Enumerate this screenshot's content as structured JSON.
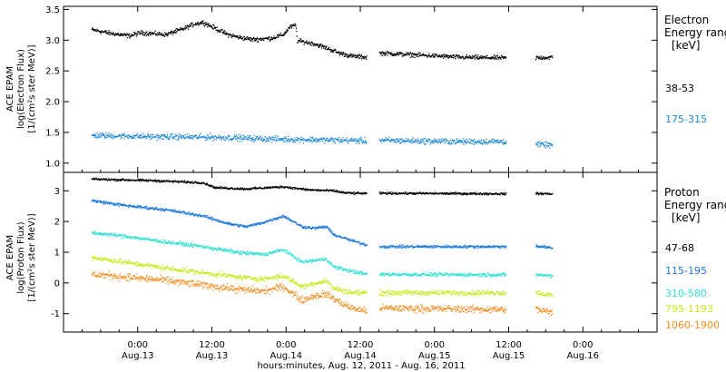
{
  "chart_data": [
    {
      "type": "scatter",
      "panel": "electron",
      "ylabel": [
        "ACE EPAM",
        "log(Electron Flux)",
        "[1/(cm²s ster MeV)]"
      ],
      "ylim": [
        0.85,
        3.55
      ],
      "yticks": [
        "3.5",
        "3.0",
        "2.5",
        "2.0",
        "1.5",
        "1.0"
      ],
      "legend": {
        "title": [
          "Electron",
          "Energy ranges",
          "[keV]"
        ],
        "entries": [
          "38-53",
          "175-315"
        ]
      },
      "series": [
        {
          "name": "38-53",
          "color": "#000000",
          "noise": 0.03,
          "points": [
            [
              0,
              3.18
            ],
            [
              6,
              3.12
            ],
            [
              12,
              3.08
            ],
            [
              16,
              3.13
            ],
            [
              24,
              3.1
            ],
            [
              30,
              3.2
            ],
            [
              33,
              3.27
            ],
            [
              36,
              3.3
            ],
            [
              40,
              3.2
            ],
            [
              44,
              3.1
            ],
            [
              48,
              3.05
            ],
            [
              52,
              3.02
            ],
            [
              58,
              3.04
            ],
            [
              62,
              3.1
            ],
            [
              64,
              3.22
            ],
            [
              66,
              3.25
            ],
            [
              66.5,
              3.0
            ],
            [
              72,
              2.95
            ],
            [
              76,
              2.88
            ],
            [
              80,
              2.8
            ],
            [
              84,
              2.75
            ],
            [
              89,
              2.73
            ],
            [
              93,
              2.8
            ],
            [
              120,
              2.73
            ],
            [
              134,
              2.72
            ],
            [
              142,
              2.72
            ],
            [
              149,
              2.73
            ]
          ]
        },
        {
          "name": "175-315",
          "color": "#1e88d8",
          "noise": 0.04,
          "points": [
            [
              0,
              1.46
            ],
            [
              20,
              1.44
            ],
            [
              40,
              1.43
            ],
            [
              60,
              1.4
            ],
            [
              84,
              1.38
            ],
            [
              89,
              1.37
            ],
            [
              93,
              1.38
            ],
            [
              120,
              1.36
            ],
            [
              134,
              1.36
            ],
            [
              142,
              1.32
            ],
            [
              149,
              1.3
            ]
          ]
        }
      ]
    },
    {
      "type": "scatter",
      "panel": "proton",
      "ylabel": [
        "ACE EPAM",
        "log(Proton Flux)",
        "[1/(cm²s ster MeV)]"
      ],
      "ylim": [
        -1.6,
        3.6
      ],
      "yticks": [
        "3",
        "2",
        "1",
        "0",
        "-1"
      ],
      "legend": {
        "title": [
          "Proton",
          "Energy ranges",
          "[keV]"
        ],
        "entries": [
          "47-68",
          "115-195",
          "310-580",
          "795-1193",
          "1060-1900"
        ]
      },
      "series": [
        {
          "name": "47-68",
          "color": "#000000",
          "noise": 0.03,
          "points": [
            [
              0,
              3.4
            ],
            [
              20,
              3.35
            ],
            [
              36,
              3.28
            ],
            [
              40,
              3.12
            ],
            [
              50,
              3.08
            ],
            [
              62,
              3.15
            ],
            [
              70,
              3.05
            ],
            [
              78,
              3.02
            ],
            [
              82,
              2.95
            ],
            [
              89,
              2.93
            ],
            [
              93,
              2.94
            ],
            [
              134,
              2.92
            ],
            [
              142,
              2.93
            ],
            [
              149,
              2.92
            ]
          ]
        },
        {
          "name": "115-195",
          "color": "#1e78dc",
          "noise": 0.04,
          "points": [
            [
              0,
              2.7
            ],
            [
              10,
              2.55
            ],
            [
              24,
              2.4
            ],
            [
              36,
              2.2
            ],
            [
              44,
              1.95
            ],
            [
              50,
              1.85
            ],
            [
              56,
              2.0
            ],
            [
              62,
              2.2
            ],
            [
              68,
              1.85
            ],
            [
              72,
              1.8
            ],
            [
              76,
              1.85
            ],
            [
              78,
              1.6
            ],
            [
              84,
              1.4
            ],
            [
              89,
              1.25
            ],
            [
              93,
              1.2
            ],
            [
              134,
              1.2
            ],
            [
              142,
              1.25
            ],
            [
              149,
              1.15
            ]
          ]
        },
        {
          "name": "310-580",
          "color": "#30e0d0",
          "noise": 0.05,
          "points": [
            [
              0,
              1.65
            ],
            [
              10,
              1.55
            ],
            [
              24,
              1.35
            ],
            [
              36,
              1.2
            ],
            [
              48,
              1.0
            ],
            [
              56,
              0.95
            ],
            [
              62,
              1.1
            ],
            [
              68,
              0.7
            ],
            [
              72,
              0.75
            ],
            [
              76,
              0.8
            ],
            [
              78,
              0.55
            ],
            [
              84,
              0.4
            ],
            [
              89,
              0.3
            ],
            [
              93,
              0.3
            ],
            [
              134,
              0.28
            ],
            [
              142,
              0.3
            ],
            [
              149,
              0.25
            ]
          ]
        },
        {
          "name": "795-1193",
          "color": "#c8e81e",
          "noise": 0.07,
          "points": [
            [
              0,
              0.85
            ],
            [
              10,
              0.7
            ],
            [
              24,
              0.5
            ],
            [
              36,
              0.35
            ],
            [
              48,
              0.2
            ],
            [
              56,
              0.15
            ],
            [
              62,
              0.25
            ],
            [
              68,
              -0.1
            ],
            [
              72,
              0.0
            ],
            [
              76,
              0.1
            ],
            [
              78,
              -0.15
            ],
            [
              84,
              -0.3
            ],
            [
              89,
              -0.3
            ],
            [
              93,
              -0.3
            ],
            [
              134,
              -0.3
            ],
            [
              142,
              -0.25
            ],
            [
              149,
              -0.4
            ]
          ]
        },
        {
          "name": "1060-1900",
          "color": "#f08c1e",
          "noise": 0.1,
          "points": [
            [
              0,
              0.3
            ],
            [
              10,
              0.22
            ],
            [
              24,
              0.1
            ],
            [
              36,
              -0.05
            ],
            [
              48,
              -0.2
            ],
            [
              56,
              -0.25
            ],
            [
              62,
              -0.1
            ],
            [
              68,
              -0.55
            ],
            [
              72,
              -0.4
            ],
            [
              76,
              -0.35
            ],
            [
              80,
              -0.6
            ],
            [
              84,
              -0.8
            ],
            [
              89,
              -0.9
            ],
            [
              93,
              -0.8
            ],
            [
              134,
              -0.85
            ],
            [
              142,
              -0.8
            ],
            [
              149,
              -0.95
            ]
          ]
        }
      ]
    }
  ],
  "data_gaps": [
    [
      89,
      93
    ],
    [
      134,
      142
    ]
  ],
  "shared_x": {
    "range": [
      -12,
      84
    ],
    "xlabel": "hours:minutes, Aug. 12, 2011 - Aug. 16, 2011",
    "ticks": [
      {
        "time": "0:00",
        "date": "Aug.13"
      },
      {
        "time": "12:00",
        "date": "Aug.13"
      },
      {
        "time": "0:00",
        "date": "Aug.14"
      },
      {
        "time": "12:00",
        "date": "Aug.14"
      },
      {
        "time": "0:00",
        "date": "Aug.15"
      },
      {
        "time": "12:00",
        "date": "Aug.15"
      },
      {
        "time": "0:00",
        "date": "Aug.16"
      }
    ],
    "tick_hours": [
      0,
      12,
      24,
      36,
      48,
      60,
      72
    ]
  }
}
